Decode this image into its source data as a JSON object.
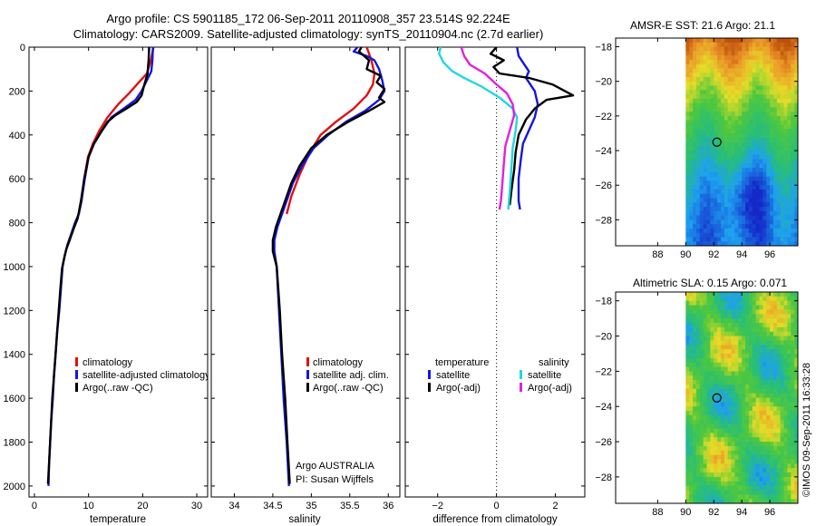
{
  "title": {
    "line1": "Argo profile: CS 5901185_172 06-Sep-2011 20110908_357 23.514S 92.224E",
    "line2": "Climatology: CARS2009. Satellite-adjusted climatology: synTS_20110904.nc (2.7d earlier)"
  },
  "side_note": "©IMOS 09-Sep-2011 16:33:28",
  "colors": {
    "climatology": "#e01010",
    "satellite": "#1515e0",
    "argo": "#000000",
    "sal_satellite": "#20d8e0",
    "sal_argo": "#e020e0",
    "map_marker": "#000000"
  },
  "chart_data": [
    {
      "type": "line",
      "name": "temperature-profile",
      "xlabel": "temperature",
      "ylabel": "",
      "xlim": [
        -1,
        32
      ],
      "ylim": [
        2050,
        0
      ],
      "xticks": [
        0,
        10,
        20,
        30
      ],
      "yticks": [
        0,
        200,
        400,
        600,
        800,
        1000,
        1200,
        1400,
        1600,
        1800,
        2000
      ],
      "series": [
        {
          "name": "climatology",
          "color": "#e01010",
          "points": [
            [
              22,
              0
            ],
            [
              21.5,
              60
            ],
            [
              20.8,
              120
            ],
            [
              19.3,
              160
            ],
            [
              17.5,
              210
            ],
            [
              15.5,
              260
            ],
            [
              13.5,
              320
            ],
            [
              12,
              380
            ],
            [
              10.8,
              440
            ],
            [
              9.9,
              500
            ],
            [
              9.2,
              600
            ],
            [
              8.7,
              700
            ],
            [
              8.2,
              760
            ]
          ]
        },
        {
          "name": "satellite-adjusted climatology",
          "color": "#1515e0",
          "points": [
            [
              21.9,
              0
            ],
            [
              21.8,
              60
            ],
            [
              21.6,
              110
            ],
            [
              20.8,
              150
            ],
            [
              19.8,
              200
            ],
            [
              18.7,
              240
            ],
            [
              16.5,
              280
            ],
            [
              14.2,
              320
            ],
            [
              12.5,
              380
            ],
            [
              11,
              440
            ],
            [
              10,
              500
            ],
            [
              9.3,
              600
            ],
            [
              8.7,
              700
            ],
            [
              8.2,
              760
            ],
            [
              7.5,
              800
            ],
            [
              6.8,
              850
            ],
            [
              6.1,
              900
            ],
            [
              5.6,
              950
            ],
            [
              5.2,
              1000
            ],
            [
              4.9,
              1100
            ],
            [
              4.6,
              1200
            ],
            [
              4.2,
              1300
            ],
            [
              3.9,
              1400
            ],
            [
              3.6,
              1500
            ],
            [
              3.4,
              1600
            ],
            [
              3.1,
              1700
            ],
            [
              2.9,
              1800
            ],
            [
              2.7,
              1900
            ],
            [
              2.6,
              2000
            ]
          ]
        },
        {
          "name": "Argo(..raw -QC)",
          "color": "#000000",
          "points": [
            [
              21.2,
              0
            ],
            [
              21.1,
              60
            ],
            [
              20.9,
              120
            ],
            [
              20.2,
              180
            ],
            [
              19.8,
              220
            ],
            [
              18.9,
              250
            ],
            [
              17,
              280
            ],
            [
              15,
              310
            ],
            [
              13.5,
              340
            ],
            [
              12.2,
              390
            ],
            [
              11,
              440
            ],
            [
              10,
              500
            ],
            [
              9.2,
              600
            ],
            [
              8.6,
              700
            ],
            [
              8,
              780
            ],
            [
              7.2,
              830
            ],
            [
              6.5,
              880
            ],
            [
              5.9,
              920
            ],
            [
              5.5,
              960
            ],
            [
              5.1,
              1010
            ],
            [
              4.8,
              1100
            ],
            [
              4.5,
              1200
            ],
            [
              4.2,
              1300
            ],
            [
              3.9,
              1400
            ],
            [
              3.6,
              1500
            ],
            [
              3.3,
              1600
            ],
            [
              3.1,
              1700
            ],
            [
              2.9,
              1800
            ],
            [
              2.7,
              1900
            ],
            [
              2.5,
              1990
            ]
          ]
        }
      ],
      "legend": {
        "placement": "bottom-right",
        "entries": [
          "climatology",
          "satellite-adjusted climatology",
          "Argo(..raw -QC)"
        ]
      }
    },
    {
      "type": "line",
      "name": "salinity-profile",
      "xlabel": "salinity",
      "ylabel": "",
      "xlim": [
        33.7,
        36.15
      ],
      "ylim": [
        2050,
        0
      ],
      "xticks": [
        34,
        34.5,
        35,
        35.5,
        36
      ],
      "yticks": [],
      "series": [
        {
          "name": "climatology",
          "color": "#e01010",
          "points": [
            [
              35.72,
              0
            ],
            [
              35.78,
              60
            ],
            [
              35.82,
              120
            ],
            [
              35.8,
              170
            ],
            [
              35.72,
              220
            ],
            [
              35.55,
              280
            ],
            [
              35.32,
              340
            ],
            [
              35.12,
              400
            ],
            [
              34.98,
              480
            ],
            [
              34.85,
              580
            ],
            [
              34.74,
              680
            ],
            [
              34.68,
              760
            ]
          ]
        },
        {
          "name": "satellite adj. clim.",
          "color": "#1515e0",
          "points": [
            [
              35.6,
              0
            ],
            [
              35.55,
              20
            ],
            [
              35.72,
              40
            ],
            [
              35.82,
              60
            ],
            [
              35.88,
              100
            ],
            [
              35.92,
              150
            ],
            [
              35.95,
              200
            ],
            [
              35.88,
              240
            ],
            [
              35.7,
              290
            ],
            [
              35.45,
              340
            ],
            [
              35.22,
              400
            ],
            [
              35.03,
              460
            ],
            [
              34.88,
              540
            ],
            [
              34.76,
              620
            ],
            [
              34.68,
              700
            ],
            [
              34.62,
              760
            ],
            [
              34.56,
              820
            ],
            [
              34.52,
              880
            ],
            [
              34.52,
              930
            ],
            [
              34.55,
              1000
            ],
            [
              34.58,
              1200
            ],
            [
              34.61,
              1400
            ],
            [
              34.64,
              1600
            ],
            [
              34.68,
              1800
            ],
            [
              34.71,
              2000
            ]
          ]
        },
        {
          "name": "Argo(..raw -QC)",
          "color": "#000000",
          "points": [
            [
              35.65,
              0
            ],
            [
              35.62,
              20
            ],
            [
              35.75,
              60
            ],
            [
              35.72,
              100
            ],
            [
              35.9,
              130
            ],
            [
              35.85,
              160
            ],
            [
              35.95,
              190
            ],
            [
              35.88,
              230
            ],
            [
              35.95,
              250
            ],
            [
              35.75,
              290
            ],
            [
              35.48,
              340
            ],
            [
              35.2,
              400
            ],
            [
              35,
              460
            ],
            [
              34.85,
              540
            ],
            [
              34.74,
              620
            ],
            [
              34.66,
              700
            ],
            [
              34.6,
              760
            ],
            [
              34.54,
              820
            ],
            [
              34.5,
              880
            ],
            [
              34.5,
              930
            ],
            [
              34.55,
              1000
            ],
            [
              34.59,
              1200
            ],
            [
              34.62,
              1400
            ],
            [
              34.66,
              1600
            ],
            [
              34.69,
              1800
            ],
            [
              34.72,
              1990
            ]
          ]
        }
      ],
      "legend": {
        "placement": "bottom-right",
        "entries": [
          "climatology",
          "satellite adj. clim.",
          "Argo(..raw -QC)"
        ]
      },
      "annotation": {
        "line1": "Argo AUSTRALIA",
        "line2": "PI: Susan Wijffels"
      }
    },
    {
      "type": "line",
      "name": "difference-profile",
      "xlabel": "difference from climatology",
      "ylabel": "",
      "xlim": [
        -3.1,
        3.0
      ],
      "ylim": [
        2050,
        0
      ],
      "xticks": [
        -2,
        0,
        2
      ],
      "yticks": [],
      "zero_line": 0,
      "series": [
        {
          "name": "temperature satellite",
          "color": "#1515e0",
          "points": [
            [
              0.7,
              0
            ],
            [
              0.75,
              40
            ],
            [
              0.95,
              80
            ],
            [
              1.1,
              110
            ],
            [
              1,
              140
            ],
            [
              1.3,
              200
            ],
            [
              1.4,
              260
            ],
            [
              1.3,
              320
            ],
            [
              1.1,
              380
            ],
            [
              0.9,
              440
            ],
            [
              0.82,
              520
            ],
            [
              0.75,
              600
            ],
            [
              0.75,
              700
            ],
            [
              0.8,
              740
            ]
          ]
        },
        {
          "name": "temperature Argo(-adj)",
          "color": "#000000",
          "points": [
            [
              0,
              0
            ],
            [
              -0.2,
              30
            ],
            [
              0.25,
              60
            ],
            [
              -0.1,
              90
            ],
            [
              0.1,
              120
            ],
            [
              1.1,
              140
            ],
            [
              1.9,
              170
            ],
            [
              2.6,
              220
            ],
            [
              1.7,
              240
            ],
            [
              1.3,
              280
            ],
            [
              1,
              330
            ],
            [
              0.75,
              400
            ],
            [
              0.65,
              480
            ],
            [
              0.6,
              560
            ],
            [
              0.52,
              640
            ],
            [
              0.45,
              720
            ]
          ]
        },
        {
          "name": "salinity satellite",
          "color": "#20d8e0",
          "points": [
            [
              -1.9,
              0
            ],
            [
              -1.95,
              30
            ],
            [
              -1.8,
              70
            ],
            [
              -1.5,
              110
            ],
            [
              -1.1,
              140
            ],
            [
              -0.5,
              180
            ],
            [
              0.1,
              230
            ],
            [
              0.55,
              280
            ],
            [
              0.7,
              320
            ],
            [
              0.65,
              380
            ],
            [
              0.55,
              460
            ],
            [
              0.5,
              560
            ],
            [
              0.45,
              660
            ],
            [
              0.4,
              740
            ]
          ]
        },
        {
          "name": "salinity Argo(-adj)",
          "color": "#e020e0",
          "points": [
            [
              -1.2,
              0
            ],
            [
              -1.1,
              40
            ],
            [
              -0.9,
              80
            ],
            [
              -0.4,
              120
            ],
            [
              0,
              170
            ],
            [
              0.35,
              210
            ],
            [
              0.55,
              260
            ],
            [
              0.6,
              310
            ],
            [
              0.45,
              380
            ],
            [
              0.3,
              450
            ],
            [
              0.25,
              530
            ],
            [
              0.2,
              620
            ],
            [
              0.15,
              700
            ],
            [
              0.1,
              740
            ]
          ]
        }
      ],
      "legend": {
        "placement": "bottom",
        "headers": [
          "temperature",
          "salinity"
        ],
        "entries": [
          "satellite",
          "Argo(-adj)",
          "satellite",
          "Argo(-adj)"
        ]
      }
    },
    {
      "type": "heatmap",
      "name": "sst-map",
      "title": "AMSR-E SST: 21.6 Argo: 21.1",
      "x_extent": [
        85,
        98
      ],
      "y_extent": [
        -29.5,
        -17.5
      ],
      "xticks": [
        88,
        90,
        92,
        94,
        96
      ],
      "yticks": [
        -18,
        -20,
        -22,
        -24,
        -26,
        -28
      ],
      "data_x_extent": [
        90,
        98
      ],
      "marker": [
        92.224,
        -23.514
      ]
    },
    {
      "type": "heatmap",
      "name": "sla-map",
      "title": "Altimetric SLA: 0.15 Argo: 0.071",
      "x_extent": [
        85,
        98
      ],
      "y_extent": [
        -29.5,
        -17.5
      ],
      "xticks": [
        88,
        90,
        92,
        94,
        96
      ],
      "yticks": [
        -18,
        -20,
        -22,
        -24,
        -26,
        -28
      ],
      "data_x_extent": [
        90,
        98
      ],
      "marker": [
        92.224,
        -23.514
      ]
    }
  ]
}
